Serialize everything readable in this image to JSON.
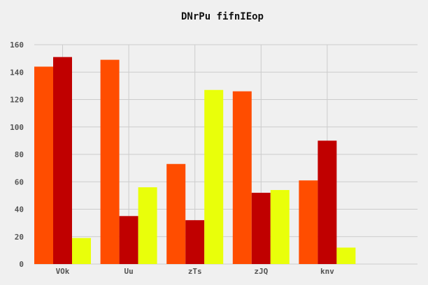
{
  "chart_data": {
    "type": "bar",
    "title": "DNrPu fifnIEop",
    "xlabel": "",
    "ylabel": "",
    "categories": [
      "VOk",
      "Uu",
      "zTs",
      "zJQ",
      "knv"
    ],
    "series": [
      {
        "values": [
          144,
          149,
          73,
          126,
          61
        ],
        "color": "#ff4d00"
      },
      {
        "values": [
          151,
          35,
          32,
          52,
          90
        ],
        "color": "#c00000"
      },
      {
        "values": [
          19,
          56,
          127,
          54,
          12
        ],
        "color": "#e9ff0a"
      }
    ],
    "ylim": [
      0,
      160
    ],
    "yticks": [
      0,
      20,
      40,
      60,
      80,
      100,
      120,
      140,
      160
    ],
    "grid": true,
    "legend": "none"
  }
}
